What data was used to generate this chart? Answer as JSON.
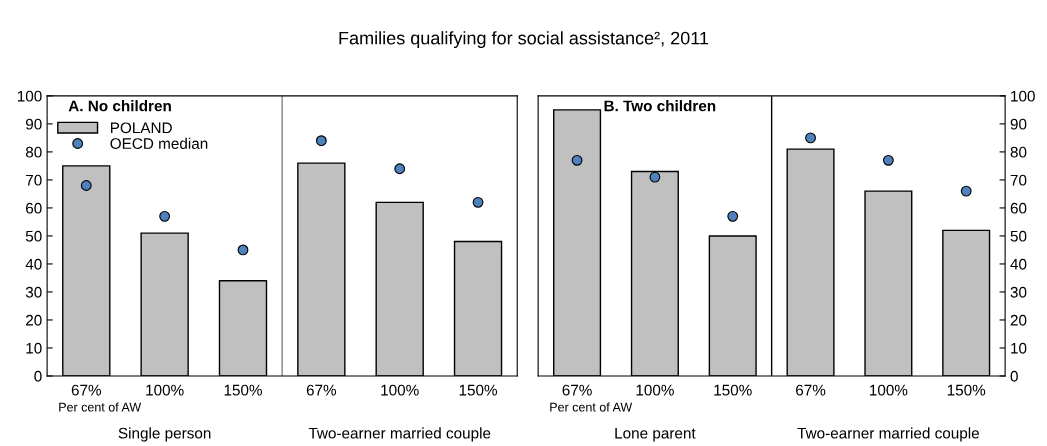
{
  "chart_data": [
    {
      "type": "bar",
      "title": "Families qualifying for social assistance², 2011",
      "subtitle": "A. No children",
      "categories": [
        "67%",
        "100%",
        "150%",
        "67%",
        "100%",
        "150%"
      ],
      "series": [
        {
          "name": "POLAND",
          "color": "#c0c0c0",
          "values": [
            75,
            51,
            34,
            76,
            62,
            48
          ]
        },
        {
          "name": "OECD median",
          "type": "scatter",
          "color": "#4f81bd",
          "values": [
            68,
            57,
            45,
            84,
            74,
            62
          ]
        }
      ],
      "ylim": [
        0,
        100
      ],
      "yticks": [
        0,
        10,
        20,
        30,
        40,
        50,
        60,
        70,
        80,
        90,
        100
      ],
      "annotations": [
        "Per cent of AW",
        "Single person",
        "Two-earner married couple"
      ],
      "legend": "top left",
      "marker": "circle",
      "grid": false
    },
    {
      "type": "bar",
      "subtitle": "B. Two children",
      "categories": [
        "67%",
        "100%",
        "150%",
        "67%",
        "100%",
        "150%"
      ],
      "series": [
        {
          "color": "#c0c0c0",
          "values": [
            95,
            73,
            50,
            81,
            66,
            52
          ]
        },
        {
          "type": "scatter",
          "color": "#4f81bd",
          "values": [
            77,
            71,
            57,
            85,
            77,
            66
          ]
        }
      ],
      "ylim": [
        0,
        100
      ],
      "yticks": [
        0,
        10,
        20,
        30,
        40,
        50,
        60,
        70,
        80,
        90,
        100
      ],
      "annotations": [
        "Per cent of AW",
        "Lone parent",
        "Two-earner married couple"
      ],
      "legend": false,
      "marker": "circle",
      "grid": false
    }
  ]
}
